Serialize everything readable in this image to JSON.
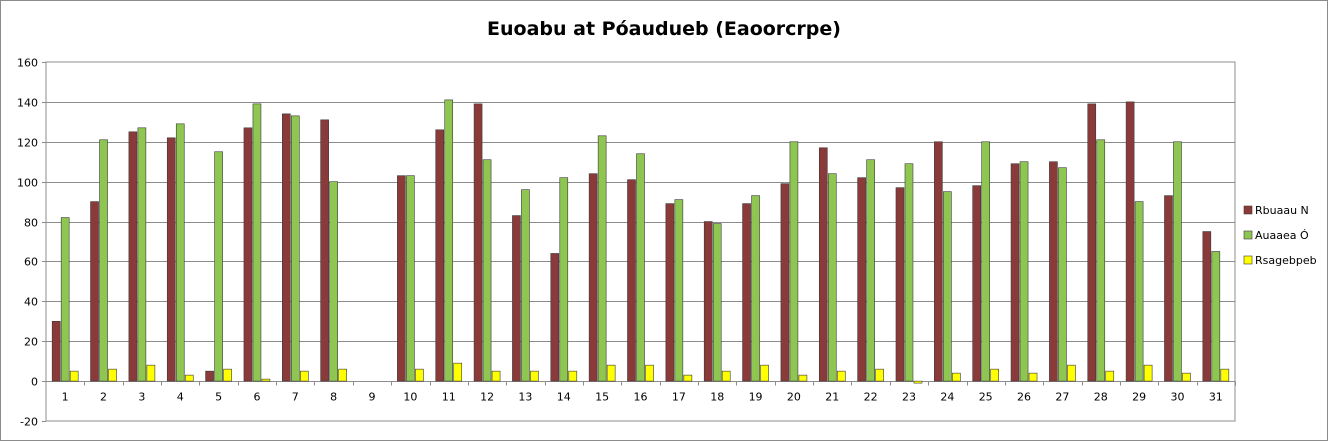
{
  "chart_data": {
    "type": "bar",
    "title": "Euoabu at Póaudueb (Eaoorcrpe)",
    "xlabel": "",
    "ylabel": "",
    "ylim": [
      -20,
      160
    ],
    "yticks": [
      -20,
      0,
      20,
      40,
      60,
      80,
      100,
      120,
      140,
      160
    ],
    "grid": true,
    "legend_position": "right",
    "categories": [
      "1",
      "2",
      "3",
      "4",
      "5",
      "6",
      "7",
      "8",
      "9",
      "10",
      "11",
      "12",
      "13",
      "14",
      "15",
      "16",
      "17",
      "18",
      "19",
      "20",
      "21",
      "22",
      "23",
      "24",
      "25",
      "26",
      "27",
      "28",
      "29",
      "30",
      "31"
    ],
    "series": [
      {
        "name": "Rbuaau N",
        "color": "#8b3a3a",
        "values": [
          30,
          90,
          125,
          122,
          5,
          127,
          134,
          131,
          null,
          103,
          126,
          139,
          83,
          64,
          104,
          101,
          89,
          80,
          89,
          99,
          117,
          102,
          97,
          120,
          98,
          109,
          110,
          139,
          140,
          93,
          75
        ]
      },
      {
        "name": "Auaaea Ó",
        "color": "#8ec651",
        "values": [
          82,
          121,
          127,
          129,
          115,
          139,
          133,
          100,
          null,
          103,
          141,
          111,
          96,
          102,
          123,
          114,
          91,
          79,
          93,
          120,
          104,
          111,
          109,
          95,
          120,
          110,
          107,
          121,
          90,
          120,
          65
        ]
      },
      {
        "name": "Rsagebpeb",
        "color": "#ffff00",
        "values": [
          5,
          6,
          8,
          3,
          6,
          1,
          5,
          6,
          null,
          6,
          9,
          5,
          5,
          5,
          8,
          8,
          3,
          5,
          8,
          3,
          5,
          6,
          -1,
          4,
          6,
          4,
          8,
          5,
          8,
          4,
          6
        ]
      }
    ]
  }
}
